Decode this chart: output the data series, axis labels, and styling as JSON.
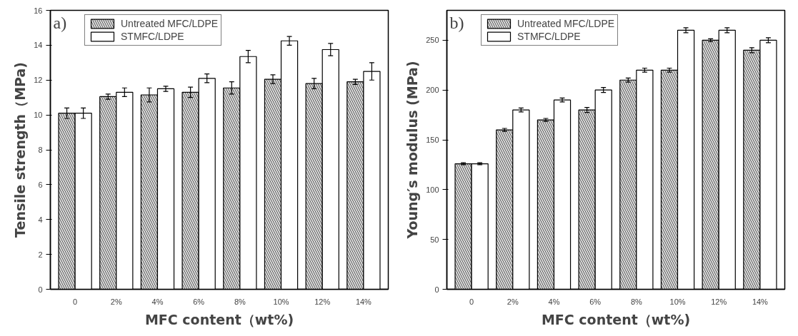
{
  "chart_data": [
    {
      "type": "bar",
      "annotations": [
        "a)"
      ],
      "xlabel": "MFC content（wt%)",
      "ylabel": "Tensile strength（MPa)",
      "categories": [
        "0",
        "2%",
        "4%",
        "6%",
        "8%",
        "10%",
        "12%",
        "14%"
      ],
      "series": [
        {
          "name": "Untreated MFC/LDPE",
          "color": "#dddddd",
          "values": [
            10.1,
            11.05,
            11.15,
            11.3,
            11.55,
            12.05,
            11.8,
            11.9
          ],
          "errors": [
            0.3,
            0.15,
            0.4,
            0.3,
            0.35,
            0.25,
            0.3,
            0.15
          ]
        },
        {
          "name": "STMFC/LDPE",
          "color": "#ffffff",
          "values": [
            10.1,
            11.3,
            11.5,
            12.1,
            13.35,
            14.25,
            13.75,
            12.5
          ],
          "errors": [
            0.3,
            0.25,
            0.15,
            0.25,
            0.35,
            0.25,
            0.35,
            0.5
          ]
        }
      ],
      "ylim": [
        0,
        16
      ],
      "yticks": [
        0,
        2,
        4,
        6,
        8,
        10,
        12,
        14,
        16
      ],
      "grid": false,
      "legend": "top left"
    },
    {
      "type": "bar",
      "annotations": [
        "b)"
      ],
      "xlabel": "MFC content（wt%)",
      "ylabel": "Young′s modulus (MPa)",
      "categories": [
        "0",
        "2%",
        "4%",
        "6%",
        "8%",
        "10%",
        "12%",
        "14%"
      ],
      "series": [
        {
          "name": "Untreated MFC/LDPE",
          "color": "#dddddd",
          "values": [
            126,
            160,
            170,
            180,
            210,
            220,
            250,
            240
          ],
          "errors": [
            1,
            1.5,
            1.5,
            2.5,
            2,
            2,
            1.5,
            2.5
          ]
        },
        {
          "name": "STMFC/LDPE",
          "color": "#ffffff",
          "values": [
            126,
            180,
            190,
            200,
            220,
            260,
            260,
            250
          ],
          "errors": [
            1,
            2,
            2,
            2.5,
            2,
            2.5,
            2.5,
            2.5
          ]
        }
      ],
      "ylim": [
        0,
        280
      ],
      "yticks": [
        0,
        50,
        100,
        150,
        200,
        250
      ],
      "grid": false,
      "legend": "top left"
    }
  ]
}
